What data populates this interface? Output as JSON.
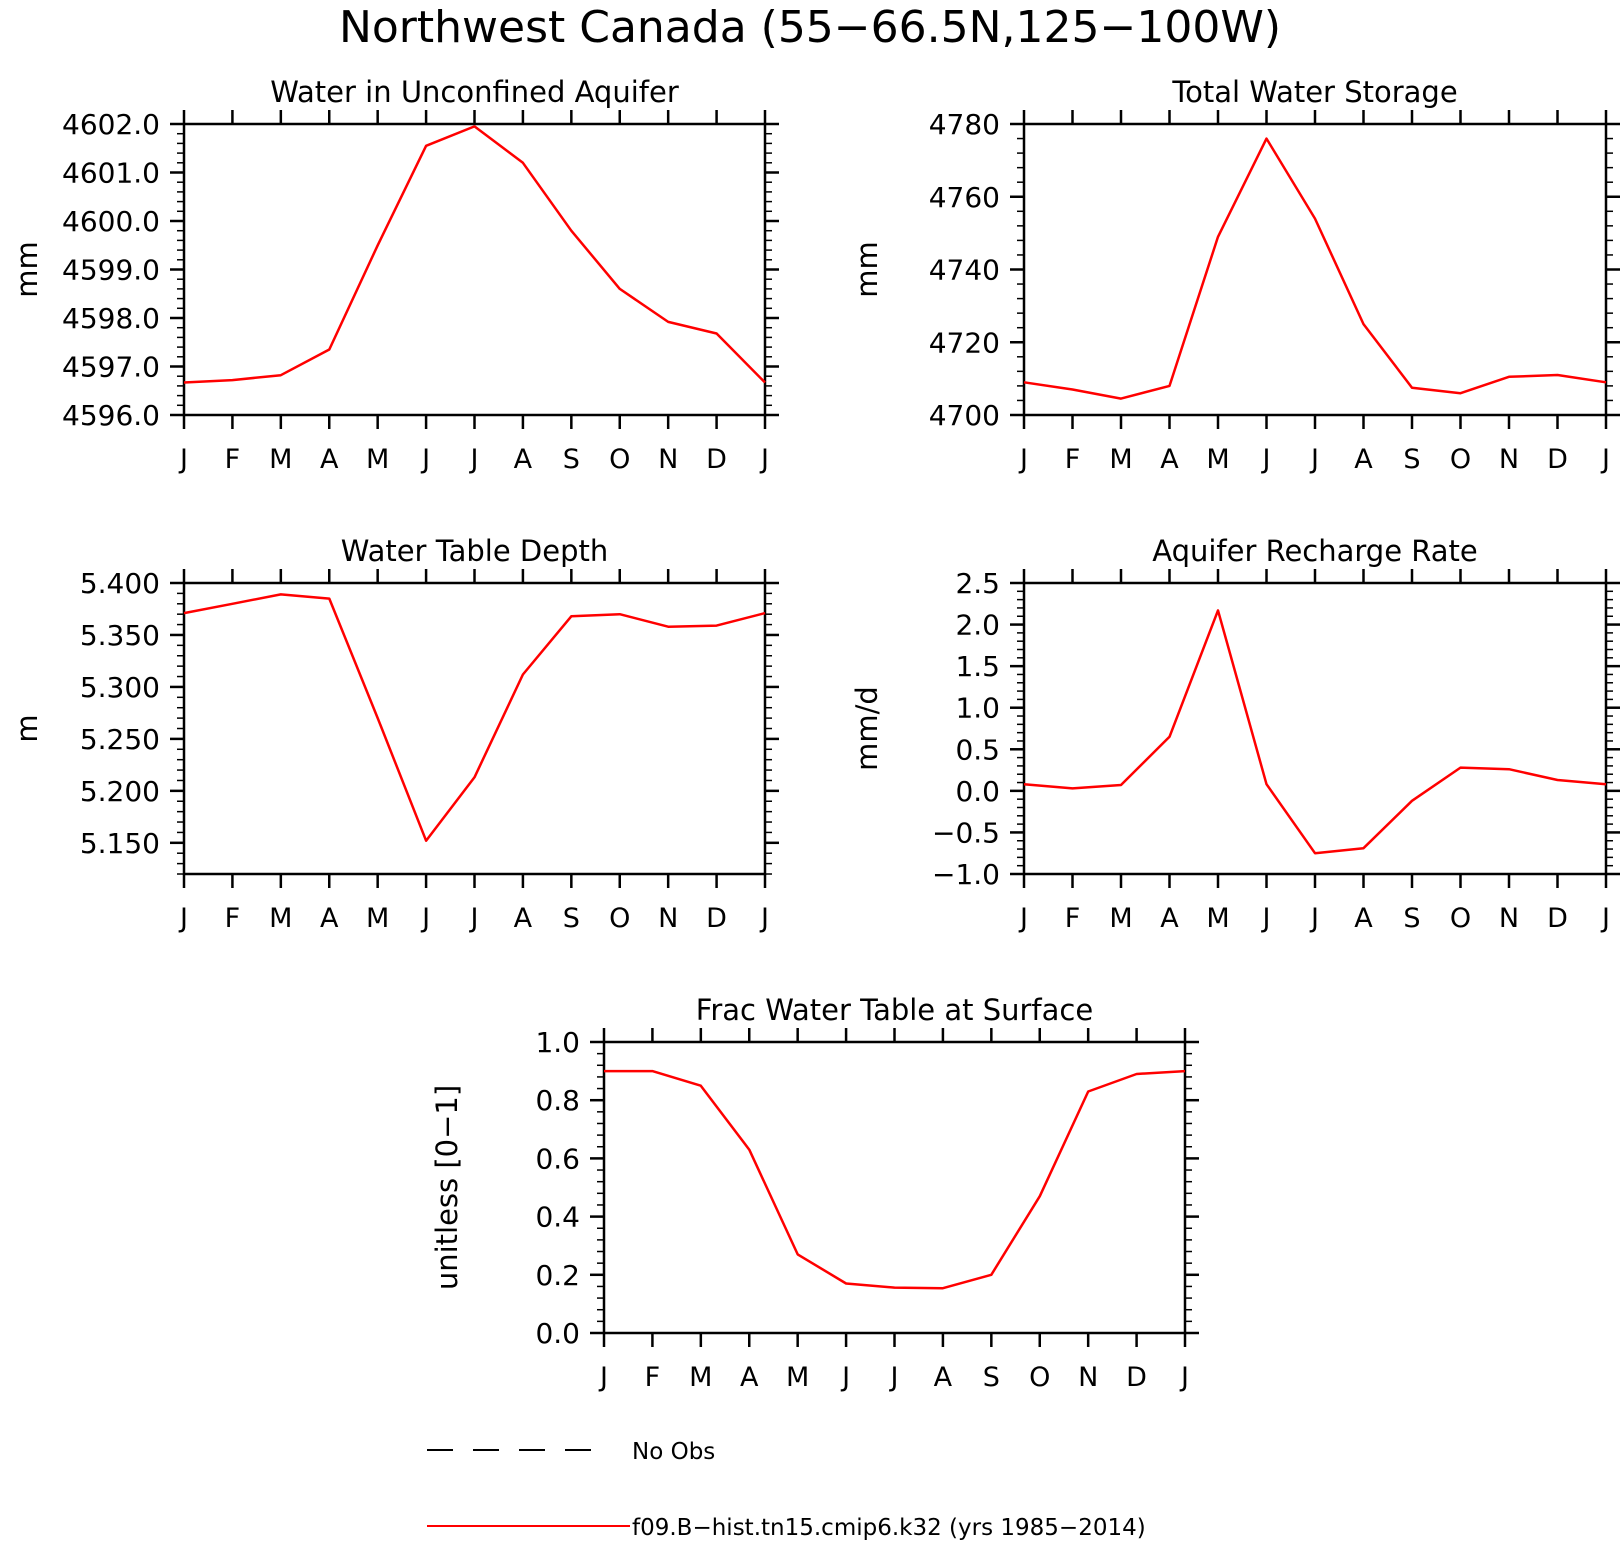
{
  "title": "Northwest Canada (55−66.5N,125−100W)",
  "legend": {
    "placement": "bottom-center",
    "entries": [
      {
        "label": "No Obs",
        "color": "#000000",
        "style": "dashed"
      },
      {
        "label": "f09.B−hist.tn15.cmip6.k32 (yrs 1985−2014)",
        "color": "#ff0000",
        "style": "solid"
      }
    ]
  },
  "chart_data": [
    {
      "type": "line",
      "title": "Water in Unconfined Aquifer",
      "ylabel": "mm",
      "xlabel": "",
      "x": [
        "J",
        "F",
        "M",
        "A",
        "M",
        "J",
        "J",
        "A",
        "S",
        "O",
        "N",
        "D",
        "J"
      ],
      "ylim": [
        4596.0,
        4602.0
      ],
      "yticks": [
        "4596.0",
        "4597.0",
        "4598.0",
        "4599.0",
        "4600.0",
        "4601.0",
        "4602.0"
      ],
      "grid": false,
      "series": [
        {
          "color": "#ff0000",
          "values": [
            4596.67,
            4596.72,
            4596.82,
            4597.35,
            4599.5,
            4601.55,
            4601.95,
            4601.2,
            4599.8,
            4598.6,
            4597.92,
            4597.68,
            4596.67
          ]
        }
      ]
    },
    {
      "type": "line",
      "title": "Total Water Storage",
      "ylabel": "mm",
      "xlabel": "",
      "x": [
        "J",
        "F",
        "M",
        "A",
        "M",
        "J",
        "J",
        "A",
        "S",
        "O",
        "N",
        "D",
        "J"
      ],
      "ylim": [
        4700,
        4780
      ],
      "yticks": [
        "4700",
        "4720",
        "4740",
        "4760",
        "4780"
      ],
      "grid": false,
      "series": [
        {
          "color": "#ff0000",
          "values": [
            4709,
            4707,
            4704.5,
            4708,
            4749,
            4776,
            4754,
            4725,
            4707.5,
            4706,
            4710.5,
            4711,
            4709
          ]
        }
      ]
    },
    {
      "type": "line",
      "title": "Water Table Depth",
      "ylabel": "m",
      "xlabel": "",
      "x": [
        "J",
        "F",
        "M",
        "A",
        "M",
        "J",
        "J",
        "A",
        "S",
        "O",
        "N",
        "D",
        "J"
      ],
      "ylim": [
        5.12,
        5.4
      ],
      "yticks": [
        "5.150",
        "5.200",
        "5.250",
        "5.300",
        "5.350",
        "5.400"
      ],
      "grid": false,
      "series": [
        {
          "color": "#ff0000",
          "values": [
            5.371,
            5.38,
            5.389,
            5.385,
            5.27,
            5.152,
            5.213,
            5.312,
            5.368,
            5.37,
            5.358,
            5.359,
            5.371
          ]
        }
      ]
    },
    {
      "type": "line",
      "title": "Aquifer Recharge Rate",
      "ylabel": "mm/d",
      "xlabel": "",
      "x": [
        "J",
        "F",
        "M",
        "A",
        "M",
        "J",
        "J",
        "A",
        "S",
        "O",
        "N",
        "D",
        "J"
      ],
      "ylim": [
        -1.0,
        2.5
      ],
      "yticks": [
        "−1.0",
        "−0.5",
        "0.0",
        "0.5",
        "1.0",
        "1.5",
        "2.0",
        "2.5"
      ],
      "grid": false,
      "series": [
        {
          "color": "#ff0000",
          "values": [
            0.08,
            0.03,
            0.07,
            0.65,
            2.17,
            0.08,
            -0.75,
            -0.69,
            -0.12,
            0.28,
            0.26,
            0.13,
            0.08
          ]
        }
      ]
    },
    {
      "type": "line",
      "title": "Frac Water Table at Surface",
      "ylabel": "unitless [0−1]",
      "xlabel": "",
      "x": [
        "J",
        "F",
        "M",
        "A",
        "M",
        "J",
        "J",
        "A",
        "S",
        "O",
        "N",
        "D",
        "J"
      ],
      "ylim": [
        0.0,
        1.0
      ],
      "yticks": [
        "0.0",
        "0.2",
        "0.4",
        "0.6",
        "0.8",
        "1.0"
      ],
      "grid": false,
      "series": [
        {
          "color": "#ff0000",
          "values": [
            0.9,
            0.9,
            0.85,
            0.63,
            0.27,
            0.17,
            0.156,
            0.154,
            0.2,
            0.47,
            0.83,
            0.89,
            0.9
          ]
        }
      ]
    }
  ]
}
